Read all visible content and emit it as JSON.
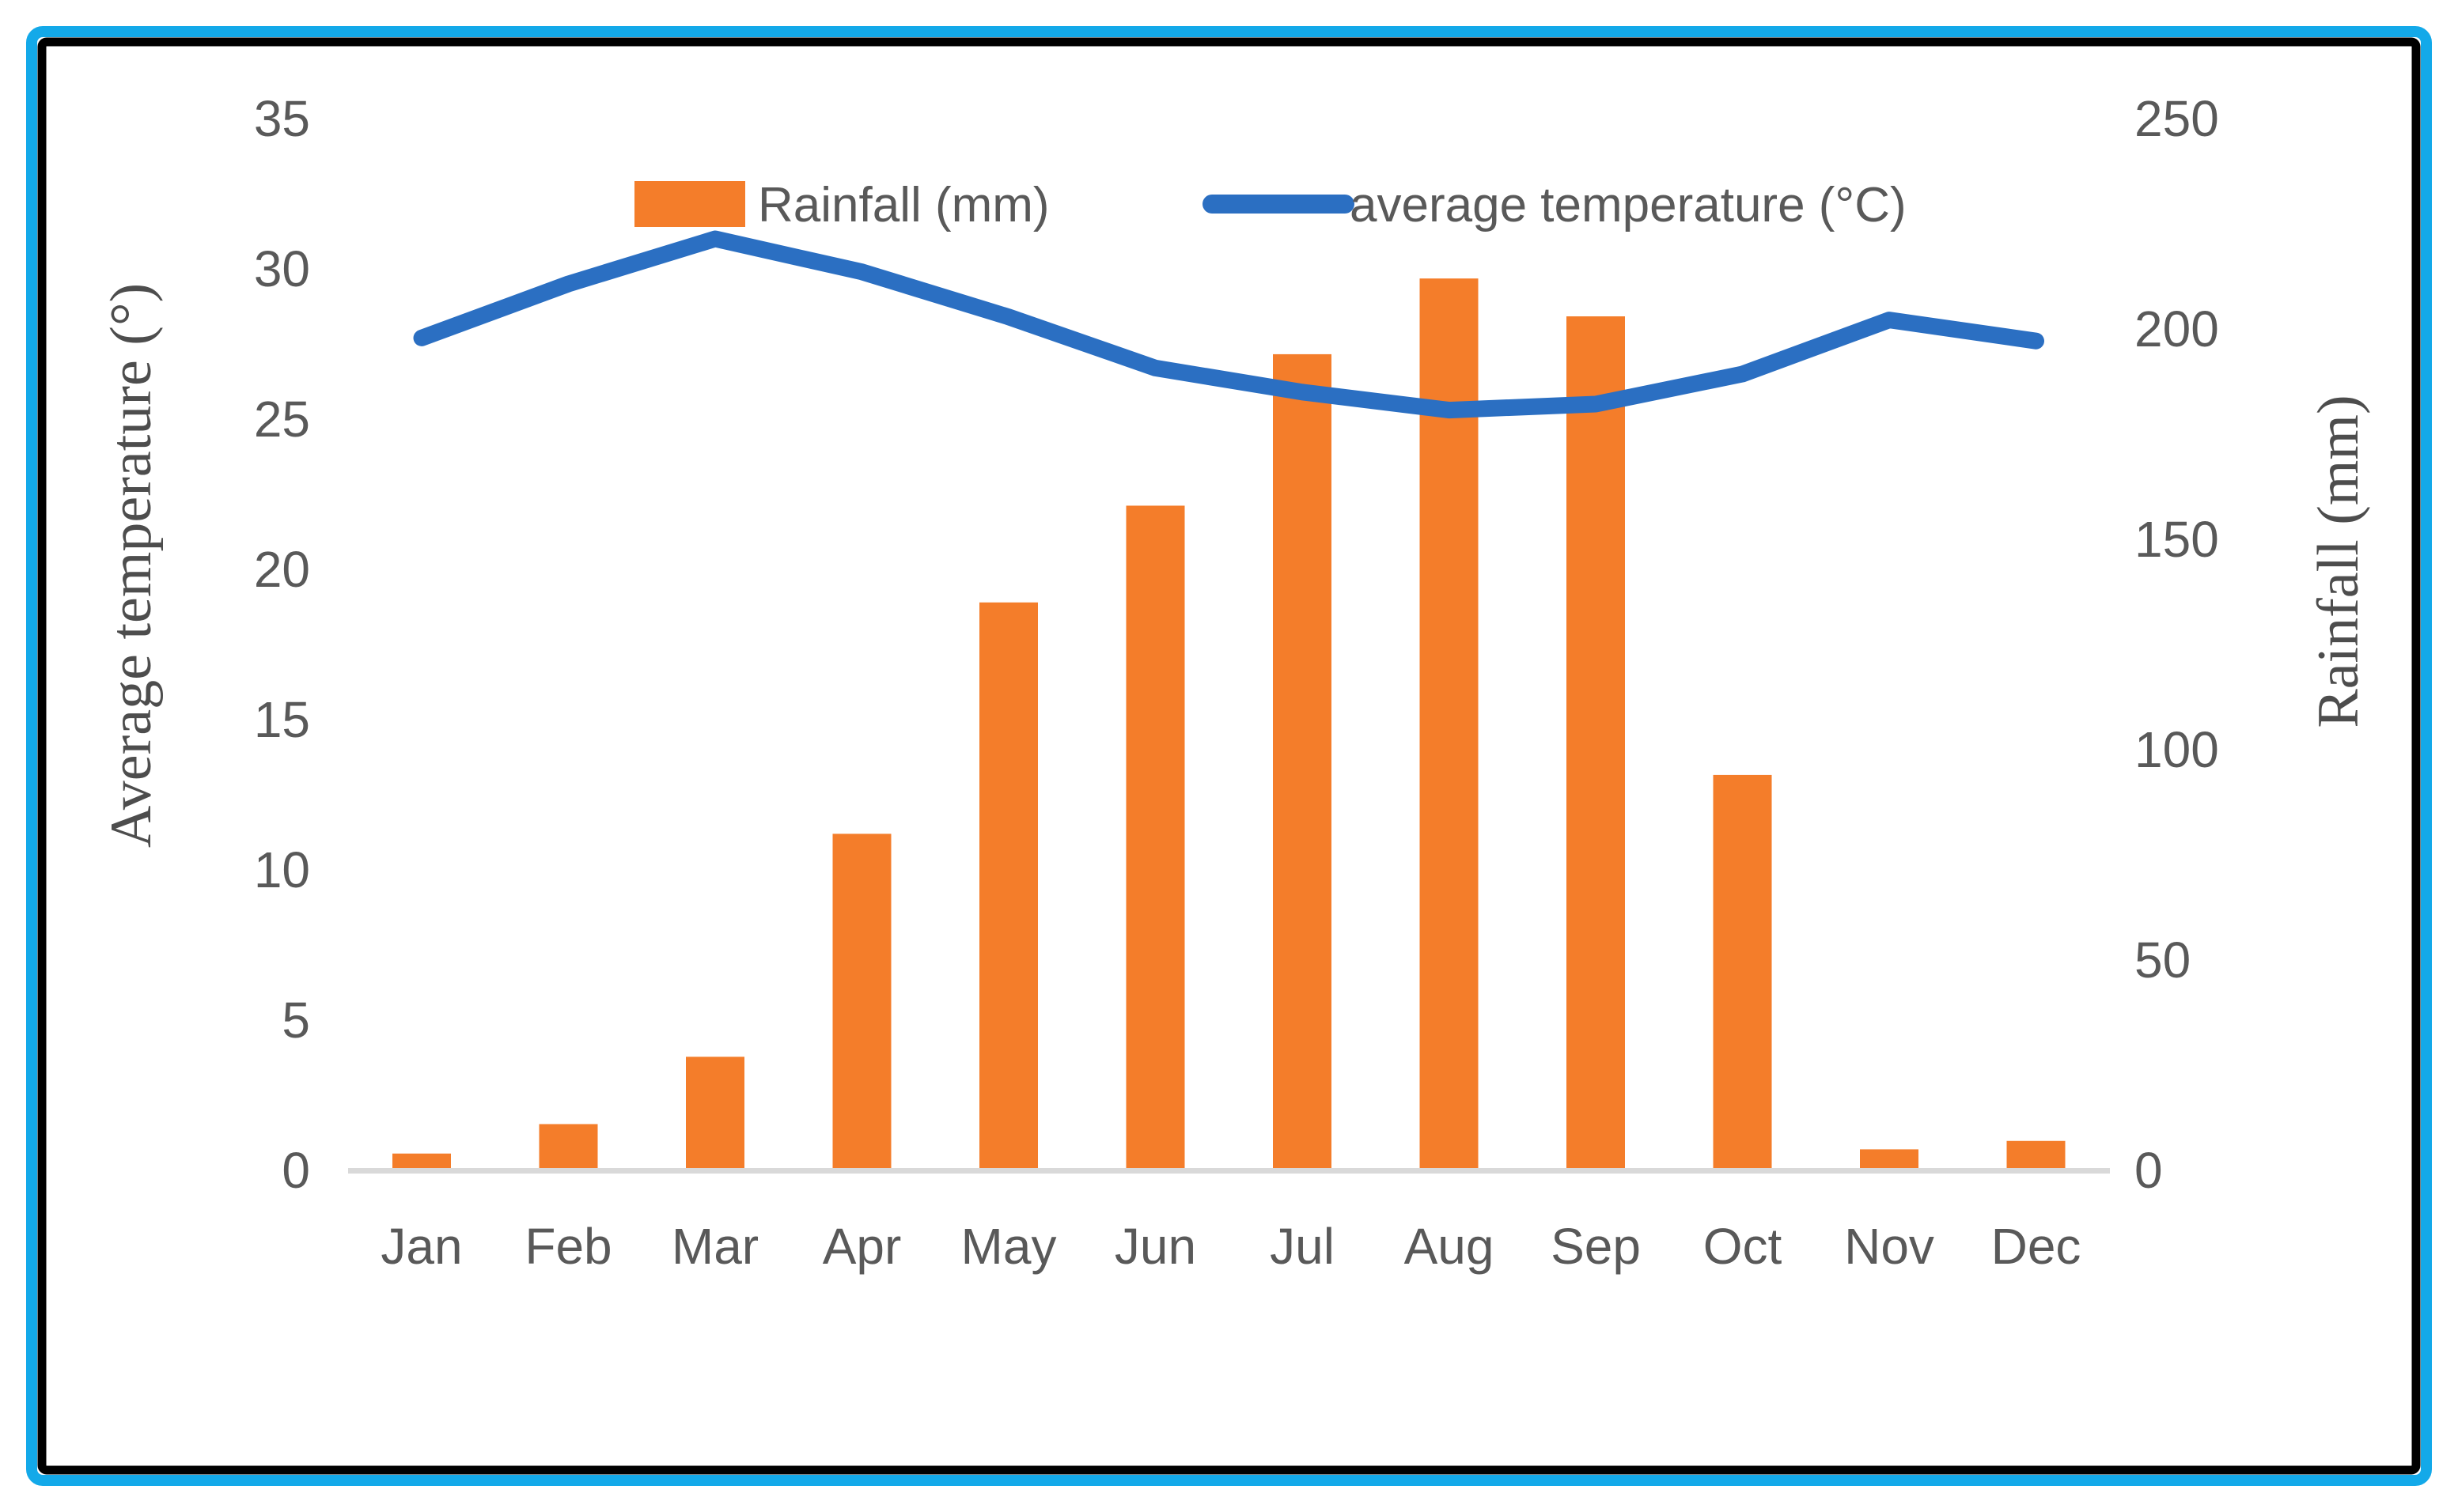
{
  "chart_data": {
    "type": "combo-bar-line",
    "title": "",
    "categories": [
      "Jan",
      "Feb",
      "Mar",
      "Apr",
      "May",
      "Jun",
      "Jul",
      "Aug",
      "Sep",
      "Oct",
      "Nov",
      "Dec"
    ],
    "series": [
      {
        "name": "Rainfall (mm)",
        "type": "bar",
        "axis": "right",
        "color": "#F47D2A",
        "values": [
          4,
          11,
          27,
          80,
          135,
          158,
          194,
          212,
          203,
          94,
          5,
          7
        ]
      },
      {
        "name": "average temperature (°C)",
        "type": "line",
        "axis": "left",
        "color": "#2B6FC2",
        "values": [
          27.7,
          29.5,
          31.0,
          29.9,
          28.4,
          26.7,
          25.9,
          25.3,
          25.5,
          26.5,
          28.3,
          27.6
        ]
      }
    ],
    "ylabel_left": "Average temperature (°)",
    "ylabel_right": "Rainfall (mm)",
    "y_left_ticks": [
      0,
      5,
      10,
      15,
      20,
      25,
      30,
      35
    ],
    "y_right_ticks": [
      0,
      50,
      100,
      150,
      200,
      250
    ],
    "ylim_left": [
      0,
      35
    ],
    "ylim_right": [
      0,
      250
    ],
    "grid": false,
    "legend_position": "top-center"
  },
  "colors": {
    "bar": "#F47D2A",
    "line": "#2B6FC2",
    "frame_cyan": "#13A9E9",
    "frame_black": "#000000",
    "text_gray": "#595959",
    "axis_line": "#D9D9D9"
  }
}
